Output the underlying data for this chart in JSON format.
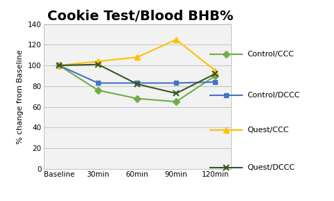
{
  "title": "Cookie Test/Blood BHB%",
  "ylabel": "% change from Baseline",
  "x_labels": [
    "Baseline",
    "30min",
    "60min",
    "90min",
    "120min"
  ],
  "series": [
    {
      "label": "Control/CCC",
      "values": [
        100,
        76,
        68,
        65,
        90
      ],
      "color": "#70ad47",
      "marker": "D",
      "markersize": 5,
      "markeredgewidth": 1,
      "use_fill": true
    },
    {
      "label": "Control/DCCC",
      "values": [
        100,
        83,
        83,
        83,
        84
      ],
      "color": "#4472c4",
      "marker": "s",
      "markersize": 5,
      "markeredgewidth": 1,
      "use_fill": true
    },
    {
      "label": "Quest/CCC",
      "values": [
        100,
        104,
        108,
        125,
        95
      ],
      "color": "#ffc000",
      "marker": "^",
      "markersize": 6,
      "markeredgewidth": 1,
      "use_fill": true
    },
    {
      "label": "Quest/DCCC",
      "values": [
        100,
        101,
        82,
        73,
        92
      ],
      "color": "#375623",
      "marker": "x",
      "markersize": 6,
      "markeredgewidth": 1.5,
      "use_fill": false
    }
  ],
  "ylim": [
    0,
    140
  ],
  "yticks": [
    0,
    20,
    40,
    60,
    80,
    100,
    120,
    140
  ],
  "background_color": "#f2f2f2",
  "plot_bg_color": "#f2f2f2",
  "outer_bg_color": "#ffffff",
  "title_fontsize": 14,
  "axis_label_fontsize": 8,
  "tick_fontsize": 7.5,
  "legend_fontsize": 8,
  "grid_color": "#c8c8c8",
  "linewidth": 1.5
}
